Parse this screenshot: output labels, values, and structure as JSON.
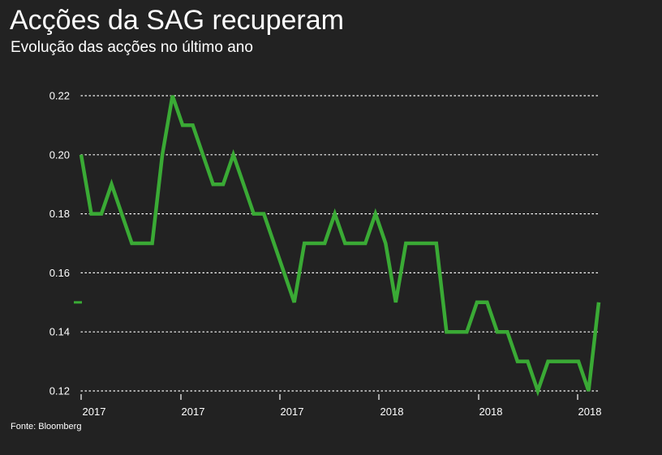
{
  "header": {
    "title": "Acções da SAG recuperam",
    "subtitle": "Evolução das acções no último ano"
  },
  "source": "Fonte: Bloomberg",
  "colors": {
    "background": "#222222",
    "line": "#3aaa35",
    "grid": "#ffffff",
    "text": "#ffffff"
  },
  "chart_data": {
    "type": "line",
    "title": "Acções da SAG recuperam",
    "subtitle": "Evolução das acções no último ano",
    "xlabel": "",
    "ylabel": "",
    "ylim": [
      0.12,
      0.22
    ],
    "y_ticks": [
      "0.22",
      "0.20",
      "0.18",
      "0.16",
      "0.14",
      "0.12"
    ],
    "x_tick_labels": [
      "2017",
      "2017",
      "2017",
      "2018",
      "2018",
      "2018"
    ],
    "grid": true,
    "legend": "none",
    "marker_left_value": 0.15,
    "series": [
      {
        "values": [
          0.2,
          0.18,
          0.18,
          0.19,
          0.18,
          0.17,
          0.17,
          0.17,
          0.2,
          0.22,
          0.21,
          0.21,
          0.2,
          0.19,
          0.19,
          0.2,
          0.19,
          0.18,
          0.18,
          0.17,
          0.16,
          0.15,
          0.17,
          0.17,
          0.17,
          0.18,
          0.17,
          0.17,
          0.17,
          0.18,
          0.17,
          0.15,
          0.17,
          0.17,
          0.17,
          0.17,
          0.14,
          0.14,
          0.14,
          0.15,
          0.15,
          0.14,
          0.14,
          0.13,
          0.13,
          0.12,
          0.13,
          0.13,
          0.13,
          0.13,
          0.12,
          0.15
        ]
      }
    ]
  }
}
